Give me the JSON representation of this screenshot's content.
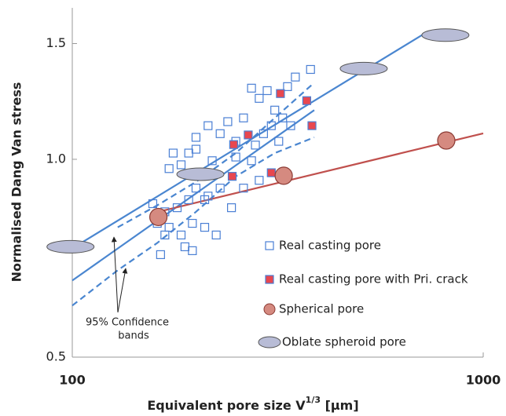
{
  "chart_data": {
    "type": "scatter",
    "x_label": [
      "Equivalent pore size V",
      "1/3",
      " [μm]"
    ],
    "y_label": "Normalised Dang Van stress",
    "xscale": "log",
    "yscale": "log",
    "xlim": [
      100,
      1000
    ],
    "ylim": [
      0.5,
      1.7
    ],
    "xticks": [
      100,
      1000
    ],
    "yticks": [
      0.5,
      {
        "value": 1,
        "label": "1.0"
      },
      1.5
    ],
    "series": [
      {
        "name": "Real casting pore",
        "marker": "square-open",
        "color": "#4a7fd4",
        "x": [
          380,
          349,
          334,
          273,
          285,
          298,
          311,
          325,
          340,
          305,
          261,
          239,
          229,
          214,
          200,
          192,
          184,
          172,
          176,
          200,
          219,
          250,
          273,
          285,
          261,
          229,
          214,
          200,
          192,
          180,
          168,
          157,
          161,
          172,
          184,
          196,
          210,
          224,
          188,
          168,
          164,
          196,
          210,
          244,
          250,
          279,
          292,
          318
        ],
        "values": [
          1.37,
          1.334,
          1.29,
          1.283,
          1.238,
          1.272,
          1.188,
          1.156,
          1.125,
          1.125,
          1.156,
          1.141,
          1.094,
          1.125,
          1.08,
          1.022,
          0.981,
          0.968,
          1.022,
          1.036,
          0.995,
          1.008,
          0.995,
          0.929,
          0.904,
          0.904,
          0.879,
          0.904,
          0.868,
          0.844,
          0.832,
          0.856,
          0.799,
          0.788,
          0.767,
          0.799,
          0.788,
          0.767,
          0.736,
          0.767,
          0.716,
          0.726,
          0.868,
          0.844,
          1.065,
          1.051,
          1.094,
          1.065
        ]
      },
      {
        "name": "Real casting pore with Pri. crack",
        "marker": "square-filled",
        "color": "#e8474f",
        "x": [
          321,
          372,
          383,
          247,
          268,
          245,
          305
        ],
        "values": [
          1.259,
          1.228,
          1.125,
          1.053,
          1.089,
          0.942,
          0.954
        ]
      },
      {
        "name": "Spherical pore",
        "marker": "circle",
        "color": "#d58a80",
        "x": [
          162,
          327,
          813
        ],
        "values": [
          0.817,
          0.944,
          1.068
        ]
      },
      {
        "name": "Oblate spheroid pore",
        "marker": "ellipse",
        "color": "#b8bcd6",
        "x": [
          99,
          205,
          512,
          809
        ],
        "values": [
          0.736,
          0.949,
          1.374,
          1.545
        ]
      }
    ],
    "lines": [
      {
        "color": "#4a86d0",
        "dash": false,
        "x": [
          100,
          720
        ],
        "values": [
          0.732,
          1.554
        ]
      },
      {
        "color": "#4a86d0",
        "dash": false,
        "x": [
          100,
          388
        ],
        "values": [
          0.654,
          1.188
        ]
      },
      {
        "color": "#4a86d0",
        "dash": true,
        "x": [
          129,
          161,
          200,
          250,
          311,
          388
        ],
        "values": [
          0.788,
          0.851,
          0.924,
          1.022,
          1.156,
          1.308
        ]
      },
      {
        "color": "#4a86d0",
        "dash": true,
        "x": [
          100,
          129,
          161,
          200,
          250,
          311,
          388
        ],
        "values": [
          0.599,
          0.678,
          0.746,
          0.832,
          0.942,
          1.022,
          1.08
        ]
      },
      {
        "color": "#c0504d",
        "dash": false,
        "x": [
          162,
          1000
        ],
        "values": [
          0.832,
          1.095
        ]
      }
    ],
    "annotation": [
      "95% Confidence",
      "bands"
    ]
  }
}
